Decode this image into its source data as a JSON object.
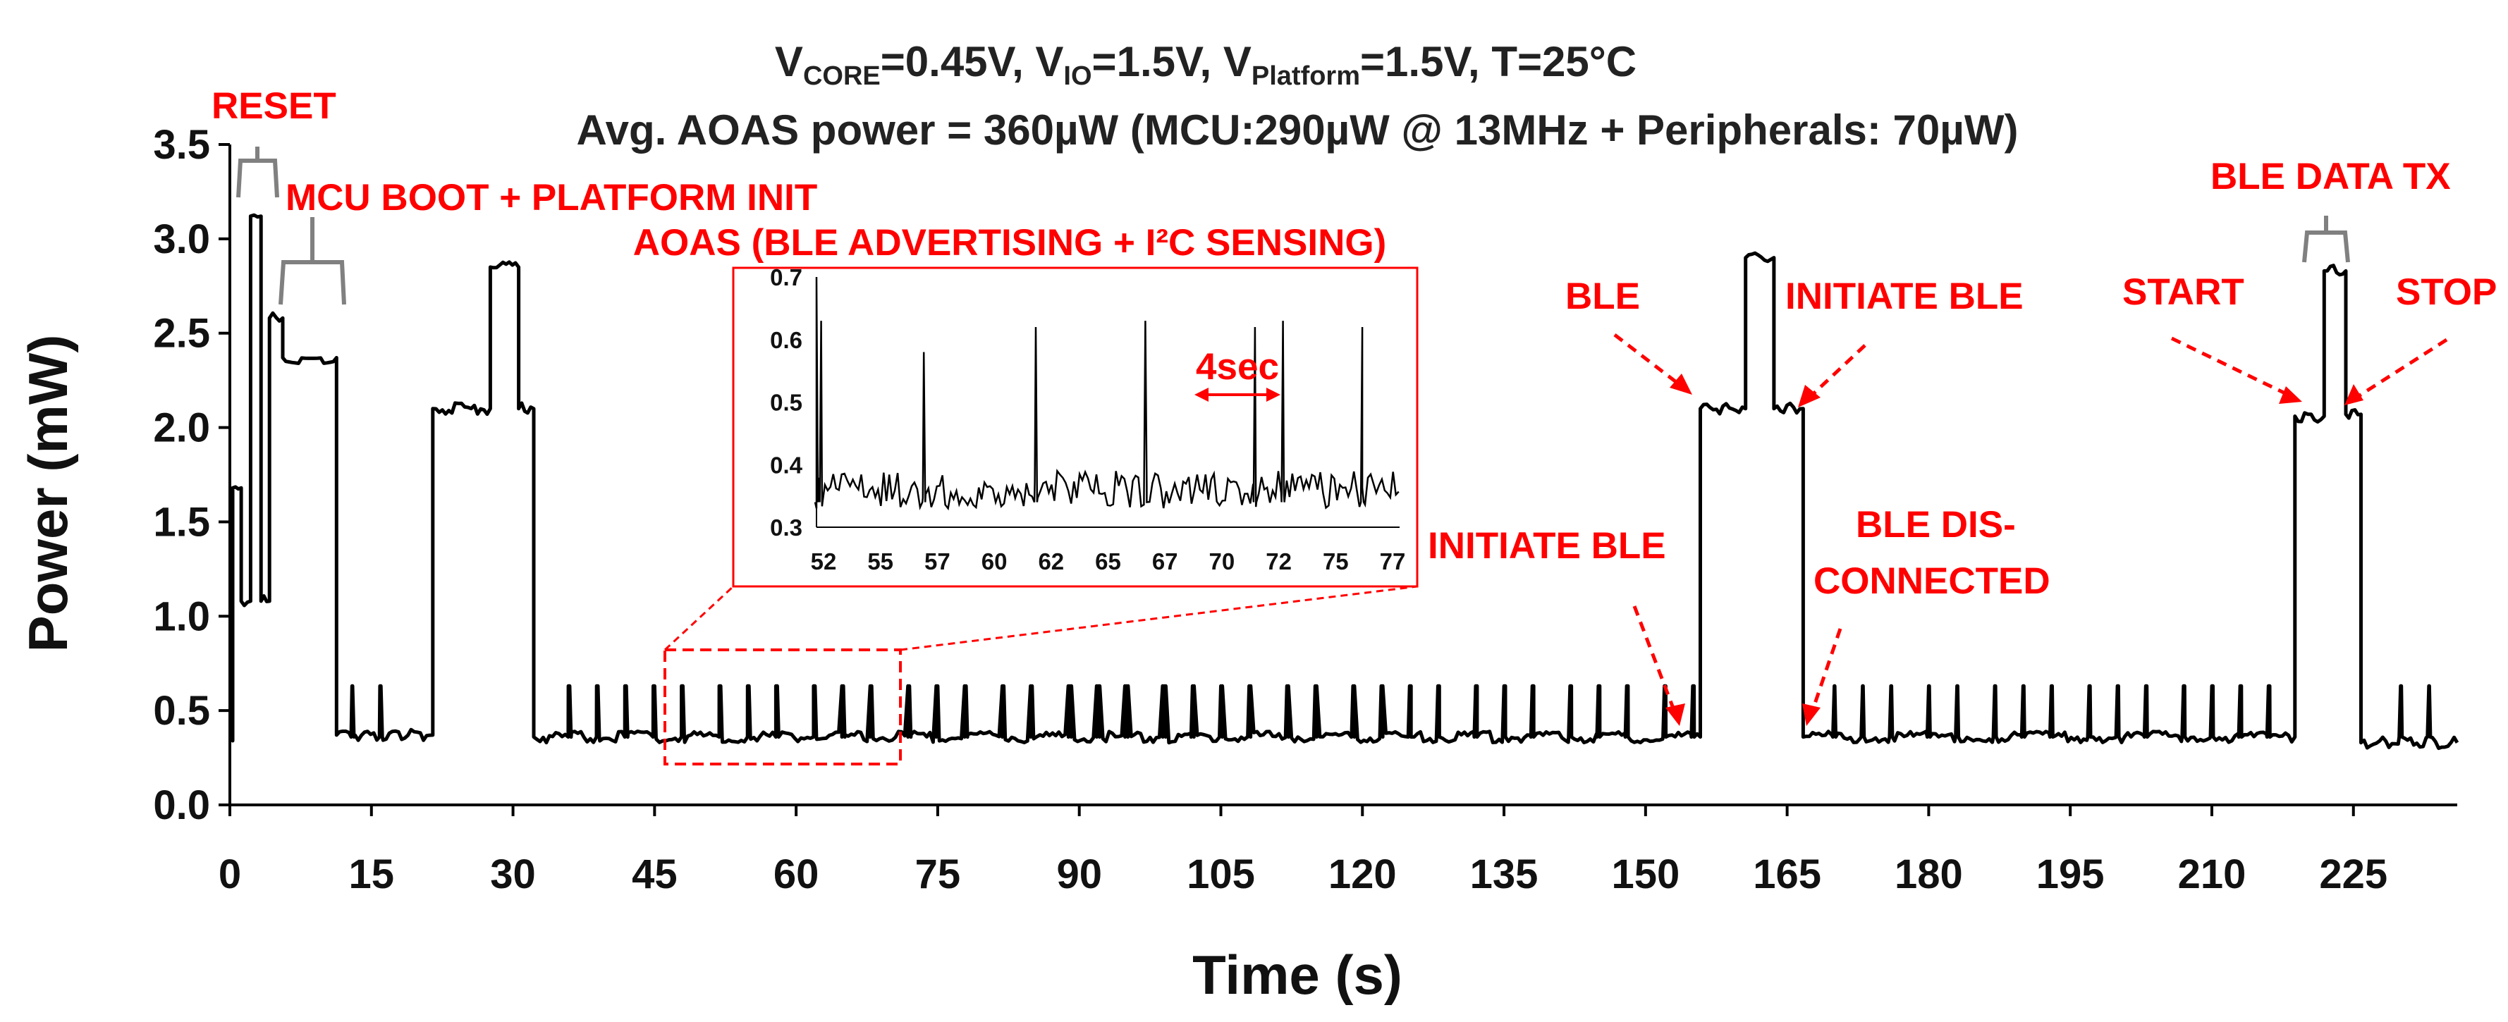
{
  "chart_data": {
    "type": "line",
    "title_line1": {
      "prefix": "V",
      "core_sub": "CORE",
      "core_val": "=0.45V, V",
      "io_sub": "IO",
      "io_val": "=1.5V, V",
      "plat_sub": "Platform",
      "rest": "=1.5V, T=25°C"
    },
    "title_line2": "Avg. AOAS power = 360µW (MCU:290µW @ 13MHz + Peripherals: 70µW)",
    "xlabel": "Time (s)",
    "ylabel": "Power (mW)",
    "xlim": [
      0,
      236
    ],
    "ylim": [
      0,
      3.5
    ],
    "xticks": [
      "0",
      "15",
      "30",
      "45",
      "60",
      "75",
      "90",
      "105",
      "120",
      "135",
      "150",
      "165",
      "180",
      "195",
      "210",
      "225"
    ],
    "yticks": [
      "0.0",
      "0.5",
      "1.0",
      "1.5",
      "2.0",
      "2.5",
      "3.0",
      "3.5"
    ],
    "series": [
      {
        "name": "Power",
        "color": "#000000",
        "baseline_mw": 0.36,
        "segments": [
          {
            "t": [
              0,
              0.3
            ],
            "mw": 0.34
          },
          {
            "t": [
              0.3,
              1.2
            ],
            "mw": 1.68
          },
          {
            "t": [
              1.2,
              2.2
            ],
            "mw": 1.08
          },
          {
            "t": [
              2.2,
              3.3
            ],
            "mw": 3.12
          },
          {
            "t": [
              3.3,
              4.2
            ],
            "mw": 1.08
          },
          {
            "t": [
              4.2,
              5.6
            ],
            "mw": 2.58
          },
          {
            "t": [
              5.6,
              11.3
            ],
            "mw": 2.37
          },
          {
            "t": [
              11.3,
              21.5
            ],
            "mw": 0.37
          },
          {
            "t": [
              21.5,
              27.6
            ],
            "mw": 2.1
          },
          {
            "t": [
              27.6,
              30.6
            ],
            "mw": 2.85
          },
          {
            "t": [
              30.6,
              32.2
            ],
            "mw": 2.1
          },
          {
            "t": [
              32.2,
              155.8
            ],
            "mw": 0.36
          },
          {
            "t": [
              155.8,
              160.6
            ],
            "mw": 2.1
          },
          {
            "t": [
              160.6,
              163.6
            ],
            "mw": 2.9
          },
          {
            "t": [
              163.6,
              166.7
            ],
            "mw": 2.1
          },
          {
            "t": [
              166.7,
              218.8
            ],
            "mw": 0.36
          },
          {
            "t": [
              218.8,
              221.9
            ],
            "mw": 2.06
          },
          {
            "t": [
              221.9,
              224.2
            ],
            "mw": 2.83
          },
          {
            "t": [
              224.2,
              225.8
            ],
            "mw": 2.07
          },
          {
            "t": [
              225.8,
              236
            ],
            "mw": 0.33
          }
        ],
        "spikes_t": [
          13,
          16,
          36,
          39,
          42,
          45,
          48,
          52,
          55,
          58,
          62,
          65,
          68,
          72,
          75,
          78,
          82,
          85,
          89,
          92,
          95,
          99,
          102,
          105,
          108,
          112,
          115,
          119,
          122,
          125,
          128,
          132,
          135,
          138,
          142,
          145,
          148,
          152,
          155,
          170,
          173,
          176,
          180,
          183,
          187,
          190,
          193,
          197,
          200,
          203,
          207,
          210,
          213,
          216,
          230,
          233
        ],
        "spike_mw": 0.63
      }
    ],
    "inset": {
      "title": "AOAS (BLE ADVERTISING + I²C SENSING)",
      "xticks": [
        "52",
        "55",
        "57",
        "60",
        "62",
        "65",
        "67",
        "70",
        "72",
        "75",
        "77"
      ],
      "yticks": [
        "0.7",
        "0.6",
        "0.5",
        "0.4",
        "0.3"
      ],
      "xlim": [
        52,
        77
      ],
      "ylim": [
        0.3,
        0.7
      ],
      "spikes": [
        {
          "t": 52.0,
          "mw": 0.7
        },
        {
          "t": 52.2,
          "mw": 0.63
        },
        {
          "t": 56.6,
          "mw": 0.58
        },
        {
          "t": 61.4,
          "mw": 0.62
        },
        {
          "t": 66.1,
          "mw": 0.63
        },
        {
          "t": 70.8,
          "mw": 0.62
        },
        {
          "t": 72.0,
          "mw": 0.63
        },
        {
          "t": 75.4,
          "mw": 0.62
        }
      ],
      "baseline_mw": 0.34,
      "period_label": "4sec"
    },
    "annotations": {
      "reset": "RESET",
      "boot": "MCU BOOT + PLATFORM INIT",
      "ble": "BLE",
      "initiate_ble_top": "INITIATE BLE",
      "initiate_ble_mid": "INITIATE BLE",
      "ble_dis_1": "BLE DIS-",
      "ble_dis_2": "CONNECTED",
      "ble_data_tx": "BLE DATA TX",
      "start": "START",
      "stop": "STOP"
    },
    "colors": {
      "annotation": "#ff0000",
      "bracket": "#808080",
      "line": "#000000"
    }
  }
}
